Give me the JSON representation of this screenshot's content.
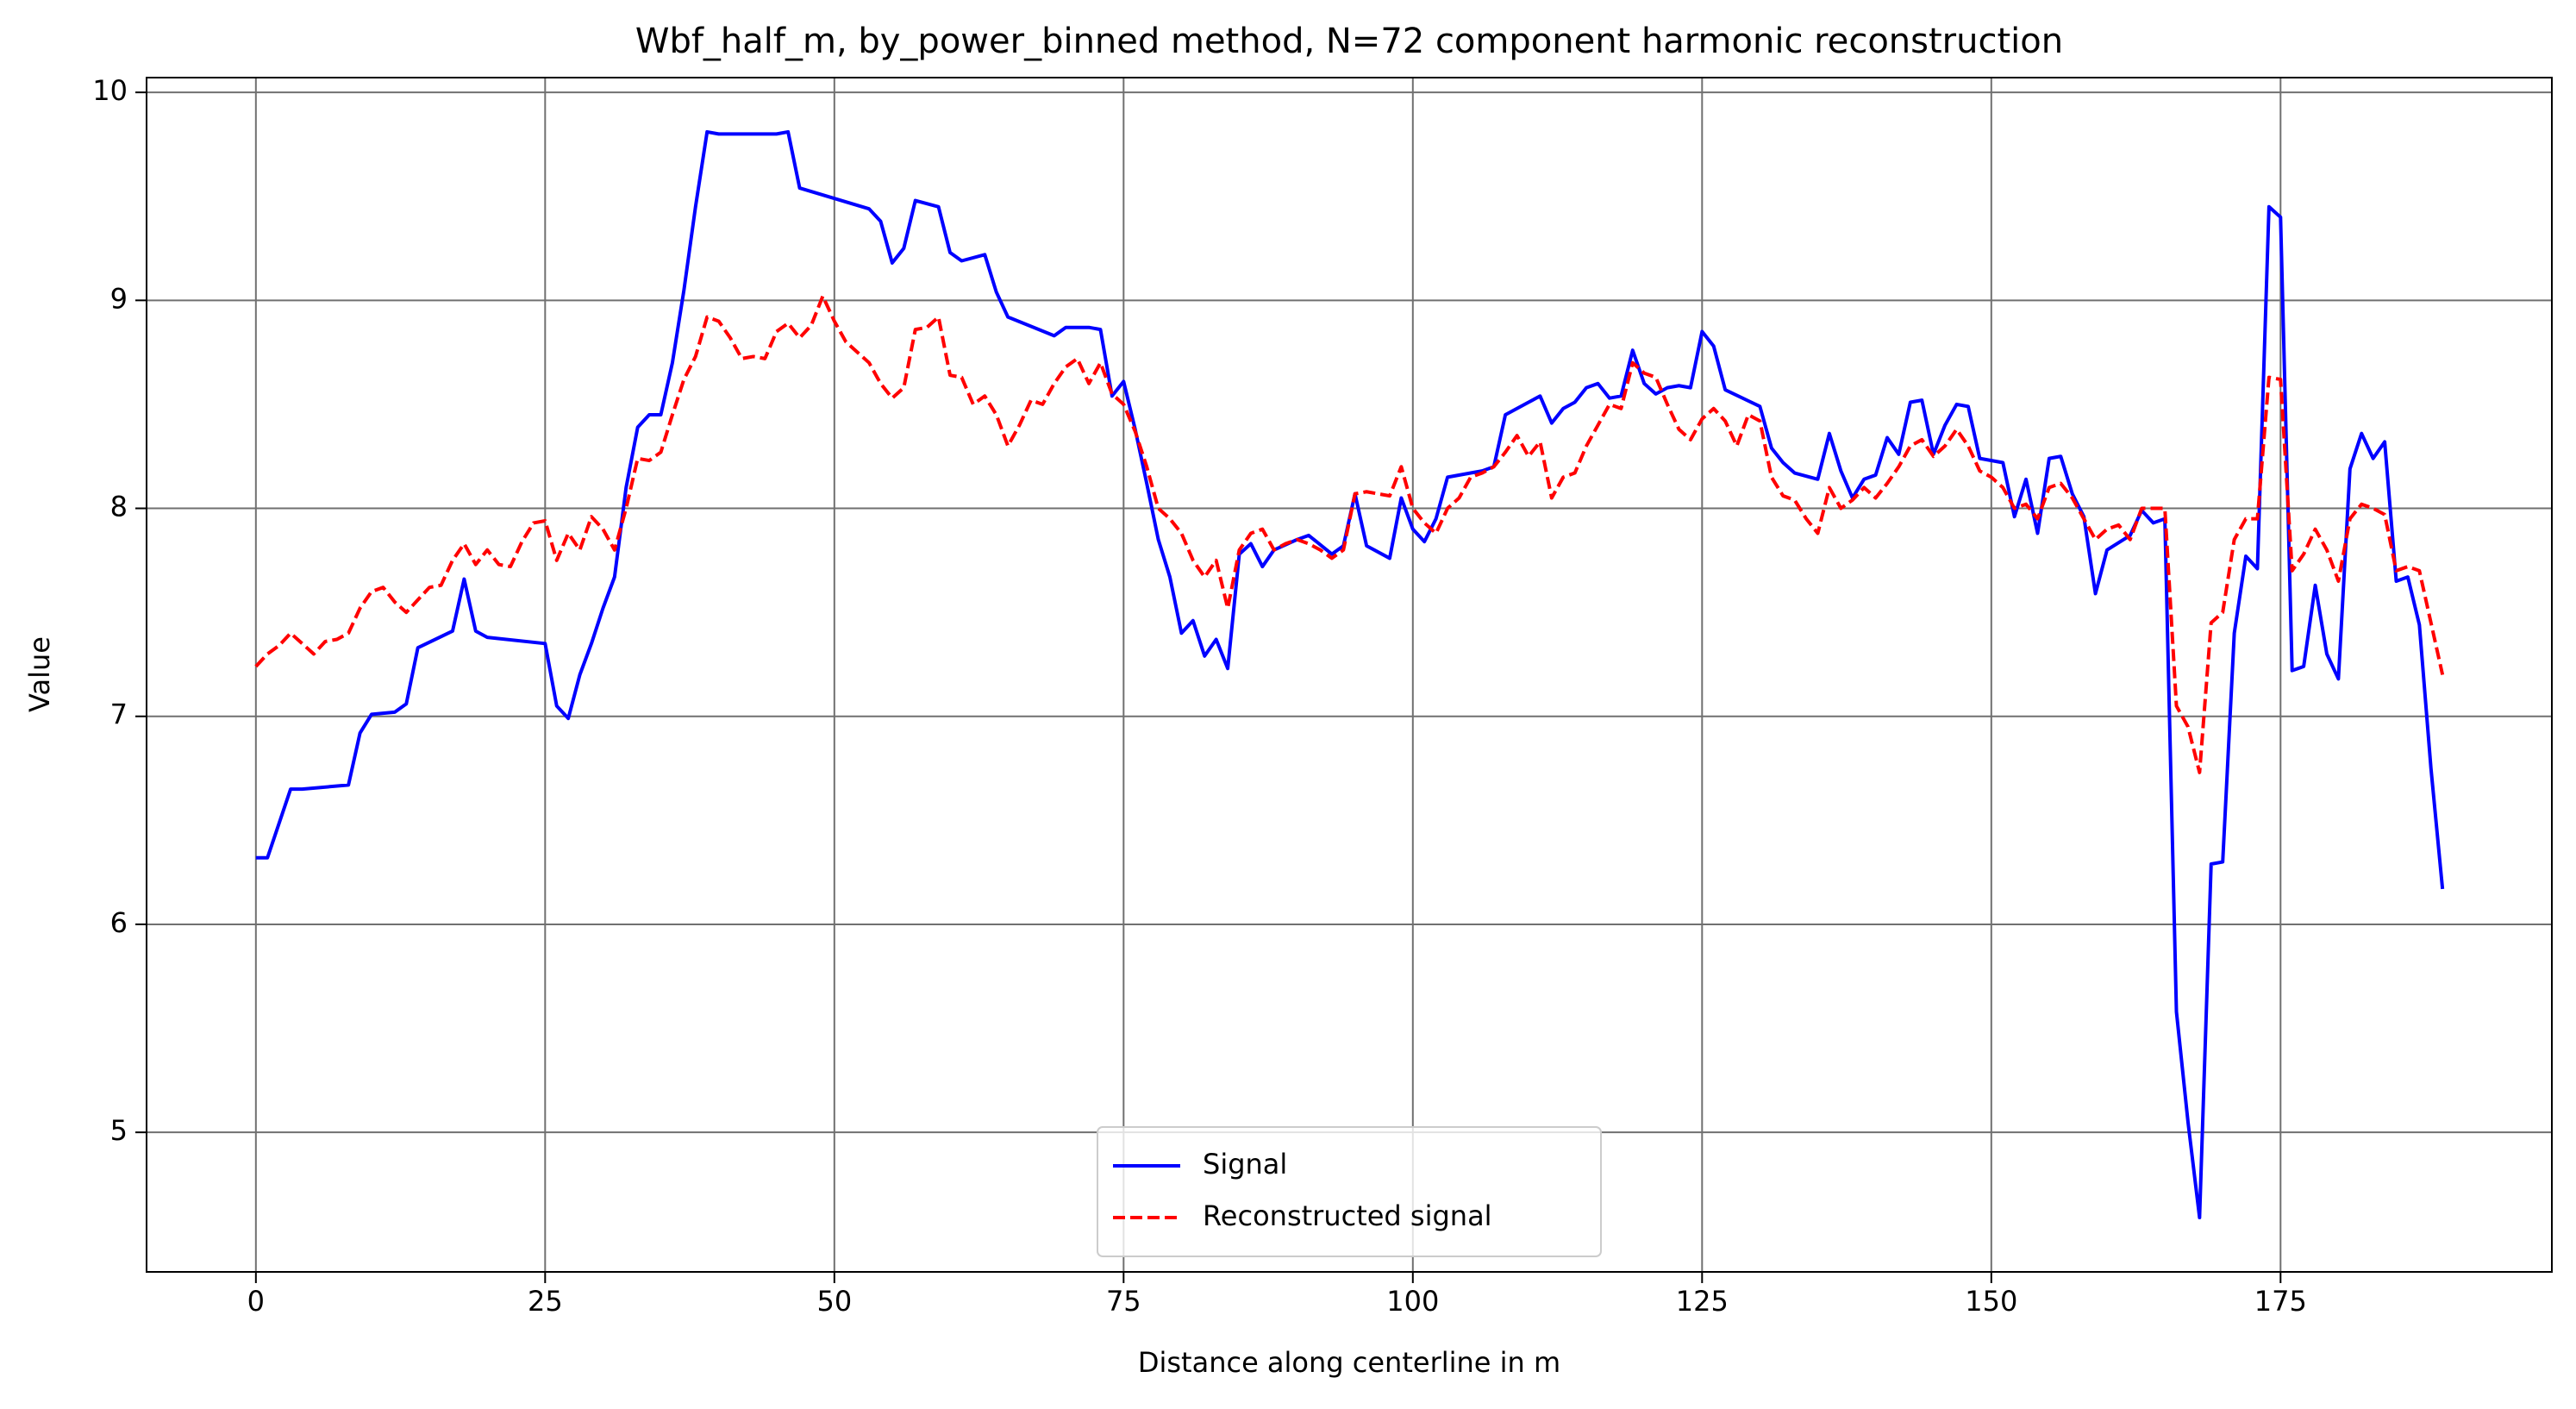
{
  "chart_data": {
    "type": "line",
    "title": "Wbf_half_m, by_power_binned method, N=72 component harmonic reconstruction",
    "xlabel": "Distance along centerline in m",
    "ylabel": "Value",
    "xlim": [
      -9.45,
      198.45
    ],
    "ylim": [
      4.329,
      10.071
    ],
    "xticks": [
      0,
      25,
      50,
      75,
      100,
      125,
      150,
      175
    ],
    "yticks": [
      5,
      6,
      7,
      8,
      9,
      10
    ],
    "grid": true,
    "legend": "lower center",
    "series": [
      {
        "name": "Signal",
        "color": "#0000ff",
        "style": "solid",
        "x": [
          0,
          1,
          3,
          4,
          8,
          9,
          10,
          12,
          13,
          14,
          17,
          18,
          19,
          20,
          25,
          26,
          27,
          28,
          29,
          30,
          31,
          32,
          33,
          34,
          35,
          36,
          37,
          38,
          39,
          40,
          45,
          46,
          47,
          53,
          54,
          55,
          56,
          57,
          59,
          60,
          61,
          63,
          64,
          65,
          69,
          70,
          72,
          73,
          74,
          75,
          76,
          77,
          78,
          79,
          80,
          81,
          82,
          83,
          84,
          85,
          86,
          87,
          88,
          90,
          91,
          93,
          94,
          95,
          96,
          98,
          99,
          100,
          101,
          102,
          103,
          105,
          106,
          107,
          108,
          110,
          111,
          112,
          113,
          114,
          115,
          116,
          117,
          118,
          119,
          120,
          121,
          122,
          123,
          124,
          125,
          126,
          127,
          130,
          131,
          132,
          133,
          135,
          136,
          137,
          138,
          139,
          140,
          141,
          142,
          143,
          144,
          145,
          146,
          147,
          148,
          149,
          151,
          152,
          153,
          154,
          155,
          156,
          157,
          158,
          159,
          160,
          162,
          163,
          164,
          165,
          166,
          167,
          168,
          169,
          170,
          171,
          172,
          173,
          174,
          175,
          176,
          177,
          178,
          179,
          180,
          181,
          182,
          183,
          184,
          185,
          186,
          187,
          188,
          189
        ],
        "values": [
          6.32,
          6.32,
          6.65,
          6.65,
          6.67,
          6.92,
          7.01,
          7.02,
          7.06,
          7.33,
          7.41,
          7.66,
          7.41,
          7.38,
          7.35,
          7.05,
          6.99,
          7.2,
          7.35,
          7.52,
          7.67,
          8.1,
          8.39,
          8.45,
          8.45,
          8.7,
          9.05,
          9.45,
          9.81,
          9.8,
          9.8,
          9.81,
          9.54,
          9.44,
          9.38,
          9.18,
          9.25,
          9.48,
          9.45,
          9.23,
          9.19,
          9.22,
          9.04,
          8.92,
          8.83,
          8.87,
          8.87,
          8.86,
          8.54,
          8.61,
          8.38,
          8.12,
          7.85,
          7.67,
          7.4,
          7.46,
          7.29,
          7.37,
          7.23,
          7.78,
          7.83,
          7.72,
          7.8,
          7.85,
          7.87,
          7.78,
          7.82,
          8.07,
          7.82,
          7.76,
          8.05,
          7.9,
          7.84,
          7.95,
          8.15,
          8.17,
          8.18,
          8.2,
          8.45,
          8.51,
          8.54,
          8.41,
          8.48,
          8.51,
          8.58,
          8.6,
          8.53,
          8.54,
          8.76,
          8.6,
          8.55,
          8.58,
          8.59,
          8.58,
          8.85,
          8.78,
          8.57,
          8.49,
          8.29,
          8.22,
          8.17,
          8.14,
          8.36,
          8.18,
          8.05,
          8.14,
          8.16,
          8.34,
          8.26,
          8.51,
          8.52,
          8.26,
          8.4,
          8.5,
          8.49,
          8.24,
          8.22,
          7.96,
          8.14,
          7.88,
          8.24,
          8.25,
          8.07,
          7.96,
          7.59,
          7.8,
          7.87,
          7.99,
          7.93,
          7.95,
          5.58,
          5.05,
          4.59,
          6.29,
          6.3,
          7.4,
          7.77,
          7.71,
          9.45,
          9.4,
          7.22,
          7.24,
          7.63,
          7.3,
          7.18,
          8.19,
          8.36,
          8.24,
          8.32,
          7.65,
          7.67,
          7.44,
          6.75,
          6.17
        ]
      },
      {
        "name": "Reconstructed signal",
        "color": "#ff0000",
        "style": "dashed",
        "x": [
          0,
          1,
          2,
          3,
          4,
          5,
          6,
          7,
          8,
          9,
          10,
          11,
          12,
          13,
          14,
          15,
          16,
          17,
          18,
          19,
          20,
          21,
          22,
          23,
          24,
          25,
          26,
          27,
          28,
          29,
          30,
          31,
          32,
          33,
          34,
          35,
          36,
          37,
          38,
          39,
          40,
          41,
          42,
          43,
          44,
          45,
          46,
          47,
          48,
          49,
          50,
          51,
          52,
          53,
          54,
          55,
          56,
          57,
          58,
          59,
          60,
          61,
          62,
          63,
          64,
          65,
          66,
          67,
          68,
          69,
          70,
          71,
          72,
          73,
          74,
          75,
          76,
          77,
          78,
          79,
          80,
          81,
          82,
          83,
          84,
          85,
          86,
          87,
          88,
          89,
          90,
          91,
          92,
          93,
          94,
          95,
          96,
          97,
          98,
          99,
          100,
          101,
          102,
          103,
          104,
          105,
          106,
          107,
          108,
          109,
          110,
          111,
          112,
          113,
          114,
          115,
          116,
          117,
          118,
          119,
          120,
          121,
          122,
          123,
          124,
          125,
          126,
          127,
          128,
          129,
          130,
          131,
          132,
          133,
          134,
          135,
          136,
          137,
          138,
          139,
          140,
          141,
          142,
          143,
          144,
          145,
          146,
          147,
          148,
          149,
          150,
          151,
          152,
          153,
          154,
          155,
          156,
          157,
          158,
          159,
          160,
          161,
          162,
          163,
          164,
          165,
          166,
          167,
          168,
          169,
          170,
          171,
          172,
          173,
          174,
          175,
          176,
          177,
          178,
          179,
          180,
          181,
          182,
          183,
          184,
          185,
          186,
          187,
          188,
          189
        ],
        "values": [
          7.24,
          7.3,
          7.34,
          7.4,
          7.35,
          7.3,
          7.36,
          7.37,
          7.4,
          7.52,
          7.6,
          7.62,
          7.55,
          7.5,
          7.56,
          7.62,
          7.63,
          7.75,
          7.83,
          7.73,
          7.8,
          7.73,
          7.72,
          7.84,
          7.93,
          7.94,
          7.75,
          7.88,
          7.8,
          7.96,
          7.9,
          7.8,
          8.0,
          8.24,
          8.23,
          8.27,
          8.45,
          8.62,
          8.73,
          8.92,
          8.9,
          8.82,
          8.72,
          8.73,
          8.72,
          8.85,
          8.89,
          8.82,
          8.88,
          9.02,
          8.9,
          8.8,
          8.75,
          8.7,
          8.6,
          8.53,
          8.58,
          8.86,
          8.87,
          8.92,
          8.64,
          8.63,
          8.5,
          8.54,
          8.45,
          8.3,
          8.4,
          8.52,
          8.5,
          8.6,
          8.68,
          8.72,
          8.6,
          8.7,
          8.55,
          8.5,
          8.37,
          8.2,
          8.0,
          7.95,
          7.88,
          7.75,
          7.67,
          7.75,
          7.52,
          7.8,
          7.88,
          7.9,
          7.8,
          7.83,
          7.85,
          7.83,
          7.8,
          7.76,
          7.8,
          8.07,
          8.08,
          8.07,
          8.06,
          8.2,
          8.0,
          7.93,
          7.88,
          8.0,
          8.05,
          8.15,
          8.17,
          8.2,
          8.27,
          8.35,
          8.25,
          8.32,
          8.05,
          8.15,
          8.17,
          8.3,
          8.4,
          8.5,
          8.48,
          8.7,
          8.65,
          8.63,
          8.5,
          8.38,
          8.33,
          8.43,
          8.48,
          8.42,
          8.3,
          8.45,
          8.42,
          8.15,
          8.06,
          8.04,
          7.95,
          7.88,
          8.1,
          8.0,
          8.04,
          8.1,
          8.05,
          8.12,
          8.2,
          8.3,
          8.33,
          8.25,
          8.3,
          8.38,
          8.3,
          8.18,
          8.15,
          8.1,
          8.0,
          8.02,
          7.95,
          8.1,
          8.12,
          8.05,
          7.95,
          7.85,
          7.9,
          7.92,
          7.85,
          8.0,
          8.0,
          8.0,
          7.05,
          6.95,
          6.73,
          7.45,
          7.5,
          7.85,
          7.95,
          7.95,
          8.63,
          8.62,
          7.7,
          7.78,
          7.9,
          7.8,
          7.65,
          7.95,
          8.02,
          8.0,
          7.97,
          7.7,
          7.72,
          7.7,
          7.45,
          7.2
        ]
      }
    ]
  }
}
